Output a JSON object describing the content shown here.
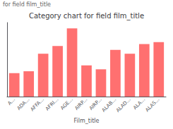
{
  "chart_data": {
    "type": "bar",
    "title": "Category chart for field film_title",
    "annotations": [
      "for field film_title"
    ],
    "xlabel": "Film_title",
    "categories": [
      "A...",
      "ADA...",
      "AFFA...",
      "AFRI...",
      "AGE...",
      "AIRP...",
      "AIRP...",
      "ALAB...",
      "ALAD...",
      "ALA...",
      "ALAS..."
    ],
    "values": [
      12,
      13,
      22,
      26,
      35,
      16,
      14,
      24,
      22,
      27,
      28
    ],
    "color": "#FF7070",
    "ylim": [
      0,
      38
    ],
    "grid": false,
    "tick_labels": "x"
  }
}
